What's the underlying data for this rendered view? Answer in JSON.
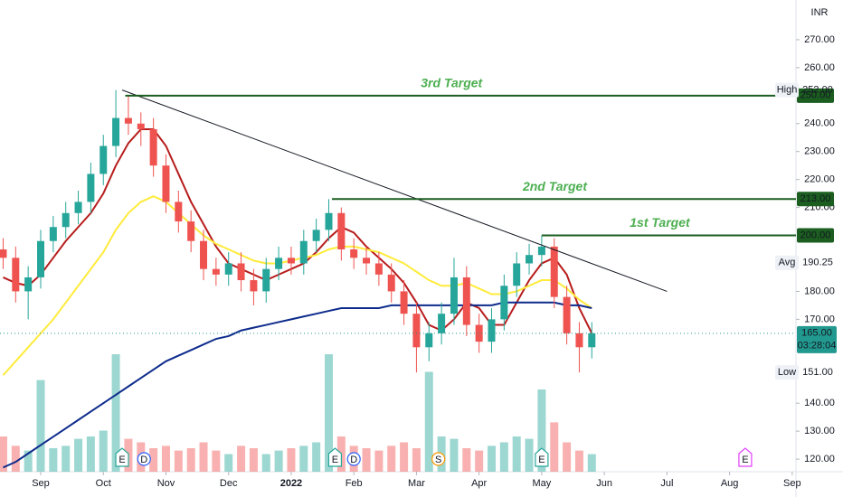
{
  "chart_data": {
    "type": "candlestick",
    "currency": "INR",
    "x": [
      -0.6,
      -0.4,
      -0.2,
      0,
      0.2,
      0.4,
      0.6,
      0.8,
      1,
      1.2,
      1.4,
      1.6,
      1.8,
      2,
      2.2,
      2.4,
      2.6,
      2.8,
      3,
      3.2,
      3.4,
      3.6,
      3.8,
      4,
      4.2,
      4.4,
      4.6,
      4.8,
      5,
      5.2,
      5.4,
      5.6,
      5.8,
      6,
      6.2,
      6.4,
      6.6,
      6.8,
      7,
      7.2,
      7.4,
      7.6,
      7.8,
      8,
      8.2,
      8.4,
      8.6,
      8.8
    ],
    "open": [
      195,
      192,
      180,
      185,
      198,
      203,
      208,
      212,
      222,
      232,
      242,
      240,
      238,
      225,
      212,
      205,
      198,
      188,
      186,
      190,
      184,
      180,
      188,
      192,
      190,
      198,
      202,
      208,
      195,
      192,
      190,
      186,
      180,
      172,
      160,
      165,
      172,
      185,
      168,
      162,
      170,
      182,
      190,
      193,
      196,
      178,
      165,
      160
    ],
    "high": [
      199,
      196,
      189,
      202,
      207,
      212,
      216,
      226,
      236,
      252,
      250,
      244,
      242,
      229,
      216,
      209,
      202,
      192,
      194,
      194,
      188,
      192,
      196,
      196,
      202,
      206,
      213,
      210,
      199,
      196,
      194,
      190,
      184,
      176,
      169,
      176,
      192,
      189,
      172,
      174,
      186,
      194,
      197,
      200,
      199,
      182,
      169,
      169
    ],
    "low": [
      188,
      176,
      170,
      181,
      194,
      199,
      204,
      208,
      218,
      228,
      236,
      232,
      221,
      208,
      201,
      194,
      184,
      182,
      182,
      180,
      175,
      176,
      184,
      186,
      186,
      194,
      198,
      191,
      188,
      186,
      182,
      176,
      168,
      151,
      155,
      161,
      168,
      164,
      158,
      158,
      166,
      178,
      186,
      189,
      174,
      161,
      151,
      156
    ],
    "close": [
      192,
      180,
      185,
      198,
      203,
      208,
      212,
      222,
      232,
      242,
      240,
      238,
      225,
      212,
      205,
      198,
      188,
      186,
      190,
      184,
      180,
      188,
      192,
      190,
      198,
      202,
      208,
      195,
      192,
      190,
      186,
      180,
      172,
      160,
      165,
      172,
      185,
      168,
      162,
      170,
      182,
      190,
      193,
      196,
      178,
      165,
      160,
      165
    ],
    "up_color": "#26a69a",
    "down_color": "#ef5350",
    "volume": [
      30,
      22,
      18,
      78,
      20,
      22,
      28,
      30,
      35,
      100,
      28,
      25,
      20,
      22,
      18,
      20,
      25,
      18,
      15,
      22,
      20,
      15,
      18,
      20,
      22,
      25,
      100,
      30,
      22,
      20,
      18,
      22,
      25,
      20,
      85,
      30,
      28,
      20,
      18,
      22,
      25,
      30,
      28,
      70,
      42,
      25,
      18,
      15
    ],
    "volume_lim": [
      0,
      100
    ],
    "series": [
      {
        "color": "#b71c1c",
        "values": [
          185,
          183,
          182,
          186,
          192,
          198,
          203,
          208,
          215,
          225,
          233,
          238,
          238,
          232,
          222,
          212,
          204,
          196,
          190,
          188,
          186,
          184,
          186,
          188,
          190,
          194,
          199,
          203,
          201,
          196,
          192,
          188,
          183,
          176,
          168,
          166,
          170,
          176,
          174,
          168,
          168,
          176,
          184,
          190,
          192,
          186,
          174,
          165
        ]
      },
      {
        "color": "#ffeb3b",
        "values": [
          150,
          155,
          160,
          165,
          170,
          176,
          182,
          188,
          194,
          202,
          208,
          212,
          214,
          212,
          208,
          204,
          200,
          197,
          195,
          193,
          191,
          190,
          190,
          191,
          192,
          193,
          195,
          196,
          196,
          195,
          194,
          192,
          190,
          187,
          184,
          182,
          182,
          183,
          181,
          179,
          179,
          180,
          182,
          184,
          184,
          181,
          177,
          174
        ]
      },
      {
        "color": "#0d2b8c",
        "values": [
          117,
          119,
          122,
          125,
          128,
          131,
          134,
          137,
          140,
          143,
          146,
          149,
          152,
          155,
          157,
          159,
          161,
          163,
          164,
          166,
          167,
          168,
          169,
          170,
          171,
          172,
          173,
          174,
          174,
          174,
          174,
          175,
          175,
          175,
          175,
          175,
          175,
          175,
          175,
          175,
          176,
          176,
          176,
          176,
          176,
          175,
          175,
          174
        ]
      }
    ],
    "xlim": [
      -0.65,
      12.06
    ],
    "xticks": [
      {
        "value": 0,
        "label": "Sep"
      },
      {
        "value": 1,
        "label": "Oct"
      },
      {
        "value": 2,
        "label": "Nov"
      },
      {
        "value": 3,
        "label": "Dec"
      },
      {
        "value": 4,
        "label": "2022"
      },
      {
        "value": 5,
        "label": "Feb"
      },
      {
        "value": 6,
        "label": "Mar"
      },
      {
        "value": 7,
        "label": "Apr"
      },
      {
        "value": 8,
        "label": "May"
      },
      {
        "value": 9,
        "label": "Jun"
      },
      {
        "value": 10,
        "label": "Jul"
      },
      {
        "value": 11,
        "label": "Aug"
      },
      {
        "value": 12,
        "label": "Sep"
      }
    ],
    "ylim": [
      115.5,
      284.2
    ],
    "yticks": [
      {
        "value": 270,
        "label": "270.00"
      },
      {
        "value": 260,
        "label": "260.00"
      },
      {
        "value": 240,
        "label": "240.00"
      },
      {
        "value": 230,
        "label": "230.00"
      },
      {
        "value": 220,
        "label": "220.00"
      },
      {
        "value": 210,
        "label": "210.00"
      },
      {
        "value": 180,
        "label": "180.00"
      },
      {
        "value": 170,
        "label": "170.00"
      },
      {
        "value": 140,
        "label": "140.00"
      },
      {
        "value": 130,
        "label": "130.00"
      },
      {
        "value": 120,
        "label": "120.00"
      }
    ],
    "levels": [
      {
        "label": "3rd Target",
        "value": 250,
        "start": 1.35,
        "value_label": "250.00"
      },
      {
        "label": "2nd Target",
        "value": 213,
        "start": 4.65,
        "value_label": "213.00"
      },
      {
        "label": "1st Target",
        "value": 200,
        "start": 8.0,
        "value_label": "200.00"
      }
    ],
    "trendline": {
      "x": [
        1.3,
        10.0
      ],
      "y": [
        252,
        180
      ]
    },
    "stats": [
      {
        "label": "High",
        "value": 252,
        "value_label": "252.00"
      },
      {
        "label": "Avg",
        "value": 190.25,
        "value_label": "190.25"
      },
      {
        "label": "Low",
        "value": 151,
        "value_label": "151.00"
      }
    ],
    "last": {
      "value": 165,
      "value_label": "165.00",
      "timer": "03:28:04",
      "color": "#22998f"
    },
    "events": [
      {
        "label": "E",
        "x": 1.3,
        "color": "#26a69a"
      },
      {
        "label": "D",
        "x": 1.65,
        "color": "#2962ff"
      },
      {
        "label": "E",
        "x": 4.7,
        "color": "#26a69a"
      },
      {
        "label": "D",
        "x": 5.0,
        "color": "#2962ff"
      },
      {
        "label": "S",
        "x": 6.35,
        "color": "#ff9800"
      },
      {
        "label": "E",
        "x": 8.0,
        "color": "#26a69a"
      },
      {
        "label": "E",
        "x": 11.25,
        "color": "#e040fb"
      }
    ]
  }
}
